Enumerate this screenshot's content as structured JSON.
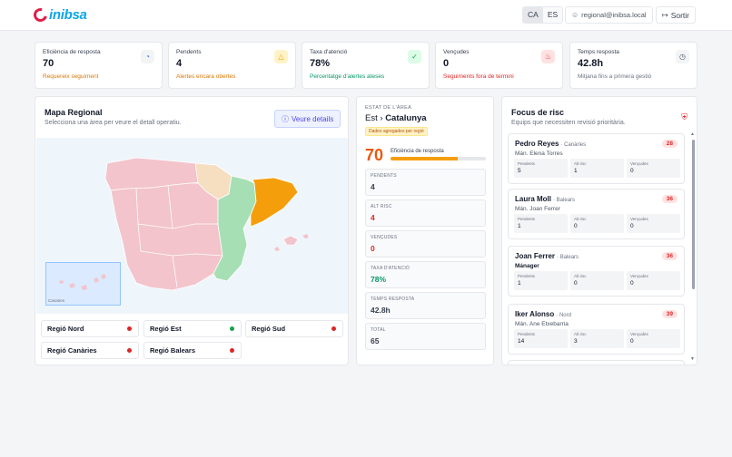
{
  "header": {
    "logo_text": "inibsa",
    "languages": [
      "CA",
      "ES"
    ],
    "active_language": "CA",
    "user_email": "regional@inibsa.local",
    "logout_label": "Sortir"
  },
  "kpis": [
    {
      "title": "Eficiència de resposta",
      "value": "70",
      "sub": "Requereix seguiment",
      "sub_color": "#d97706",
      "icon": "gauge-icon",
      "icon_color": "#2563eb"
    },
    {
      "title": "Pendents",
      "value": "4",
      "sub": "Alertes encara obertes",
      "sub_color": "#d97706",
      "icon": "warning-icon",
      "icon_color": "#f59e0b"
    },
    {
      "title": "Taxa d'atenció",
      "value": "78%",
      "sub": "Percentatge d'alertes ateses",
      "sub_color": "#059669",
      "icon": "check-circle-icon",
      "icon_color": "#16a34a"
    },
    {
      "title": "Vençudes",
      "value": "0",
      "sub": "Seguiments fora de termini",
      "sub_color": "#dc2626",
      "icon": "flame-icon",
      "icon_color": "#dc2626"
    },
    {
      "title": "Temps resposta",
      "value": "42.8h",
      "sub": "Mitjana fins a primera gestió",
      "sub_color": "#6b7280",
      "icon": "clock-icon",
      "icon_color": "#4b5563"
    }
  ],
  "map": {
    "title": "Mapa Regional",
    "subtitle": "Selecciona una àrea per veure el detall operatiu.",
    "details_button": "Veure details",
    "canarias_label": "Canaries",
    "regions": [
      {
        "label": "Regió Nord",
        "status_color": "#dc2626"
      },
      {
        "label": "Regió Est",
        "status_color": "#16a34a"
      },
      {
        "label": "Regió Sud",
        "status_color": "#dc2626"
      },
      {
        "label": "Regió Canàries",
        "status_color": "#dc2626"
      },
      {
        "label": "Regió Balears",
        "status_color": "#dc2626"
      }
    ]
  },
  "state": {
    "label": "ESTAT DE L'ÀREA",
    "area": "Est",
    "separator": "›",
    "subarea": "Catalunya",
    "tag": "Dades agregades per regió",
    "efficiency_value": "70",
    "efficiency_label": "Eficiència de resposta",
    "efficiency_fraction": 0.7,
    "stats": [
      {
        "label": "PENDENTS",
        "value": "4",
        "color": "#374151"
      },
      {
        "label": "ALT RISC",
        "value": "4",
        "color": "#dc2626"
      },
      {
        "label": "VENÇUDES",
        "value": "0",
        "color": "#dc2626"
      },
      {
        "label": "TAXA D'ATENCIÓ",
        "value": "78%",
        "color": "#059669"
      },
      {
        "label": "TEMPS RESPOSTA",
        "value": "42.8h",
        "color": "#374151"
      },
      {
        "label": "TOTAL",
        "value": "65",
        "color": "#374151"
      }
    ]
  },
  "risk": {
    "title": "Focus de risc",
    "subtitle": "Equips que necessiten revisió prioritària.",
    "stat_labels": [
      "Pendents",
      "Alt risc",
      "Vençudes"
    ],
    "items": [
      {
        "name": "Pedro Reyes",
        "region": "· Canàries",
        "manager": "Mán. Elena Torres",
        "score": "28",
        "stats": [
          "5",
          "1",
          "0"
        ]
      },
      {
        "name": "Laura Moll",
        "region": "· Balears",
        "manager": "Mán. Joan Ferrer",
        "score": "36",
        "stats": [
          "1",
          "0",
          "0"
        ]
      },
      {
        "name": "Joan Ferrer",
        "region": "· Balears",
        "manager": "Mánager",
        "score": "36",
        "stats": [
          "1",
          "0",
          "0"
        ]
      },
      {
        "name": "Iker Alonso",
        "region": "· Nord",
        "manager": "Mán. Ane Etxebarria",
        "score": "39",
        "stats": [
          "14",
          "3",
          "0"
        ]
      }
    ]
  }
}
